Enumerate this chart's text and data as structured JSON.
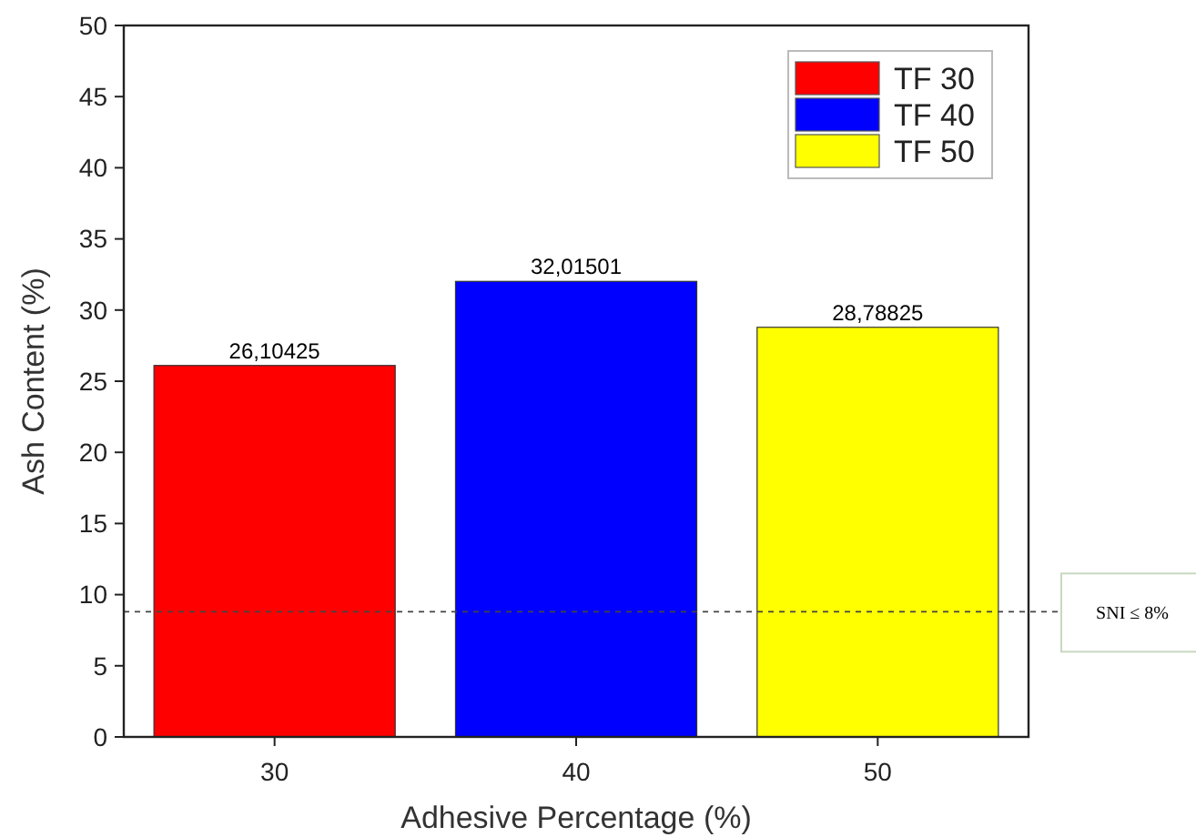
{
  "chart_data": {
    "type": "bar",
    "xlabel": "Adhesive Percentage (%)",
    "ylabel": "Ash Content (%)",
    "categories": [
      "30",
      "40",
      "50"
    ],
    "series": [
      {
        "name": "TF 30",
        "color": "#ff0000",
        "values": [
          26.10425,
          null,
          null
        ],
        "value_labels": [
          "26,10425",
          null,
          null
        ]
      },
      {
        "name": "TF 40",
        "color": "#0000ff",
        "values": [
          null,
          32.01501,
          null
        ],
        "value_labels": [
          null,
          "32,01501",
          null
        ]
      },
      {
        "name": "TF 50",
        "color": "#ffff00",
        "values": [
          null,
          null,
          28.78825
        ],
        "value_labels": [
          null,
          null,
          "28,78825"
        ]
      }
    ],
    "ylim": [
      0,
      50
    ],
    "yticks": [
      0,
      5,
      10,
      15,
      20,
      25,
      30,
      35,
      40,
      45,
      50
    ],
    "grid": false,
    "legend": "top right",
    "ref_lines": [
      {
        "axis": "y",
        "value": 8.8,
        "label": "SNI ≤ 8%",
        "line_style": "dashed"
      }
    ]
  }
}
